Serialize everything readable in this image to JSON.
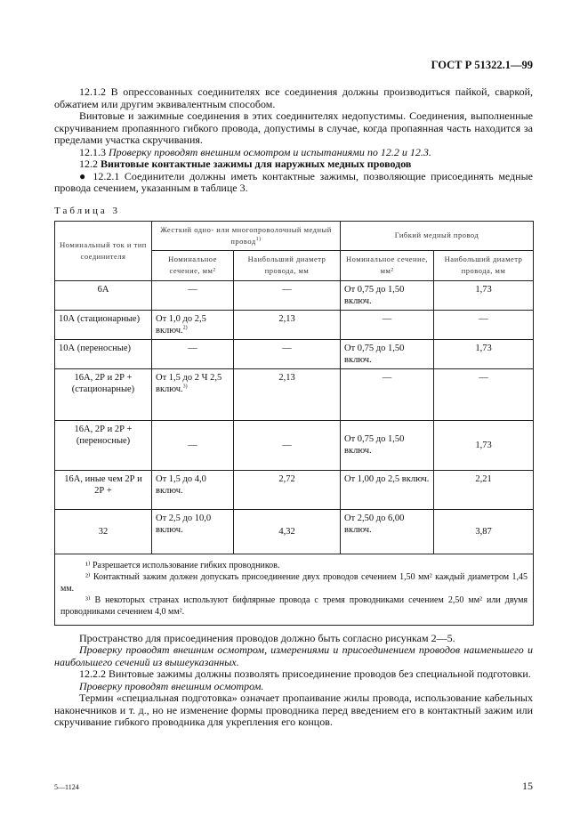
{
  "header": {
    "doc_id": "ГОСТ Р 51322.1—99"
  },
  "paragraphs": {
    "p1": "12.1.2 В опрессованных соединителях все соединения должны производиться пайкой, сваркой, обжатием или другим эквивалентным способом.",
    "p2": "Винтовые и зажимные соединения в этих соединителях недопустимы. Соединения, выполненные скручиванием пропаянного гибкого провода, допустимы в случае, когда пропаянная часть находится за пределами участка скручивания.",
    "p3_num": "12.1.3",
    "p3": "Проверку проводят внешним осмотром и испытаниями по 12.2 и 12.3.",
    "p4_num": "12.2",
    "p4": "Винтовые контактные зажимы для наружных медных проводов",
    "p5": "● 12.2.1 Соединители должны иметь контактные зажимы, позволяющие присоединять медные провода сечением, указанным в таблице 3."
  },
  "table": {
    "caption": "Таблица 3",
    "head": {
      "col1": "Номинальный ток и тип соединителя",
      "group1": "Жесткий одно- или многопроволочный медный провод",
      "group1_sup": "1)",
      "group2": "Гибкий медный провод",
      "sub1": "Номинальное сечение, мм²",
      "sub2": "Наибольший диаметр провода, мм",
      "sub3": "Номинальное сечение, мм²",
      "sub4": "Наибольший диаметр провода, мм"
    },
    "rows": [
      {
        "type": "6А",
        "rigid_sec": "—",
        "rigid_d": "—",
        "flex_sec": "От 0,75 до 1,50 включ.",
        "flex_d": "1,73"
      },
      {
        "type": "10А (стационарные)",
        "rigid_sec": "От 1,0 до 2,5 включ.",
        "rigid_sup": "2)",
        "rigid_d": "2,13",
        "flex_sec": "—",
        "flex_d": "—"
      },
      {
        "type": "10А (переносные)",
        "rigid_sec": "—",
        "rigid_d": "—",
        "flex_sec": "От 0,75 до 1,50 включ.",
        "flex_d": "1,73"
      },
      {
        "type": "16А, 2Р и 2Р + (стационарные)",
        "rigid_sec": "От 1,5 до 2 Ч 2,5 включ.",
        "rigid_sup": "3)",
        "rigid_d": "2,13",
        "flex_sec": "—",
        "flex_d": "—"
      },
      {
        "type": "16А, 2Р и 2Р + (переносные)",
        "rigid_sec": "—",
        "rigid_d": "—",
        "flex_sec": "От 0,75 до 1,50 включ.",
        "flex_d": "1,73"
      },
      {
        "type": "16А, иные чем 2Р и 2Р +",
        "rigid_sec": "От 1,5 до 4,0 включ.",
        "rigid_d": "2,72",
        "flex_sec": "От 1,00 до 2,5 включ.",
        "flex_d": "2,21"
      },
      {
        "type": "32",
        "rigid_sec": "От 2,5 до 10,0 включ.",
        "rigid_d": "4,32",
        "flex_sec": "От 2,50 до 6,00 включ.",
        "flex_d": "3,87"
      }
    ],
    "footnotes": [
      "¹⁾ Разрешается использование гибких проводников.",
      "²⁾ Контактный зажим должен допускать присоединение двух проводов сечением 1,50 мм² каждый диаметром 1,45 мм.",
      "³⁾ В некоторых странах используют бифлярные провода с тремя проводниками сечением 2,50 мм² или двумя проводниками сечением 4,0 мм²."
    ]
  },
  "after": {
    "a1": "Пространство для присоединения проводов должно быть согласно рисункам 2—5.",
    "a2": "Проверку проводят внешним осмотром, измерениями и присоединением проводов наименьшего и наибольшего сечений из вышеуказанных.",
    "a3": "12.2.2 Винтовые зажимы должны позволять присоединение проводов без специальной подготовки.",
    "a4": "Проверку проводят внешним осмотром.",
    "a5": "Термин «специальная подготовка» означает пропаивание жилы провода, использование кабельных наконечников и т. д., но не изменение формы проводника перед введением его в контактный зажим или скручивание гибкого проводника для укрепления его концов."
  },
  "footer": {
    "sheet": "5—1124",
    "page": "15"
  }
}
